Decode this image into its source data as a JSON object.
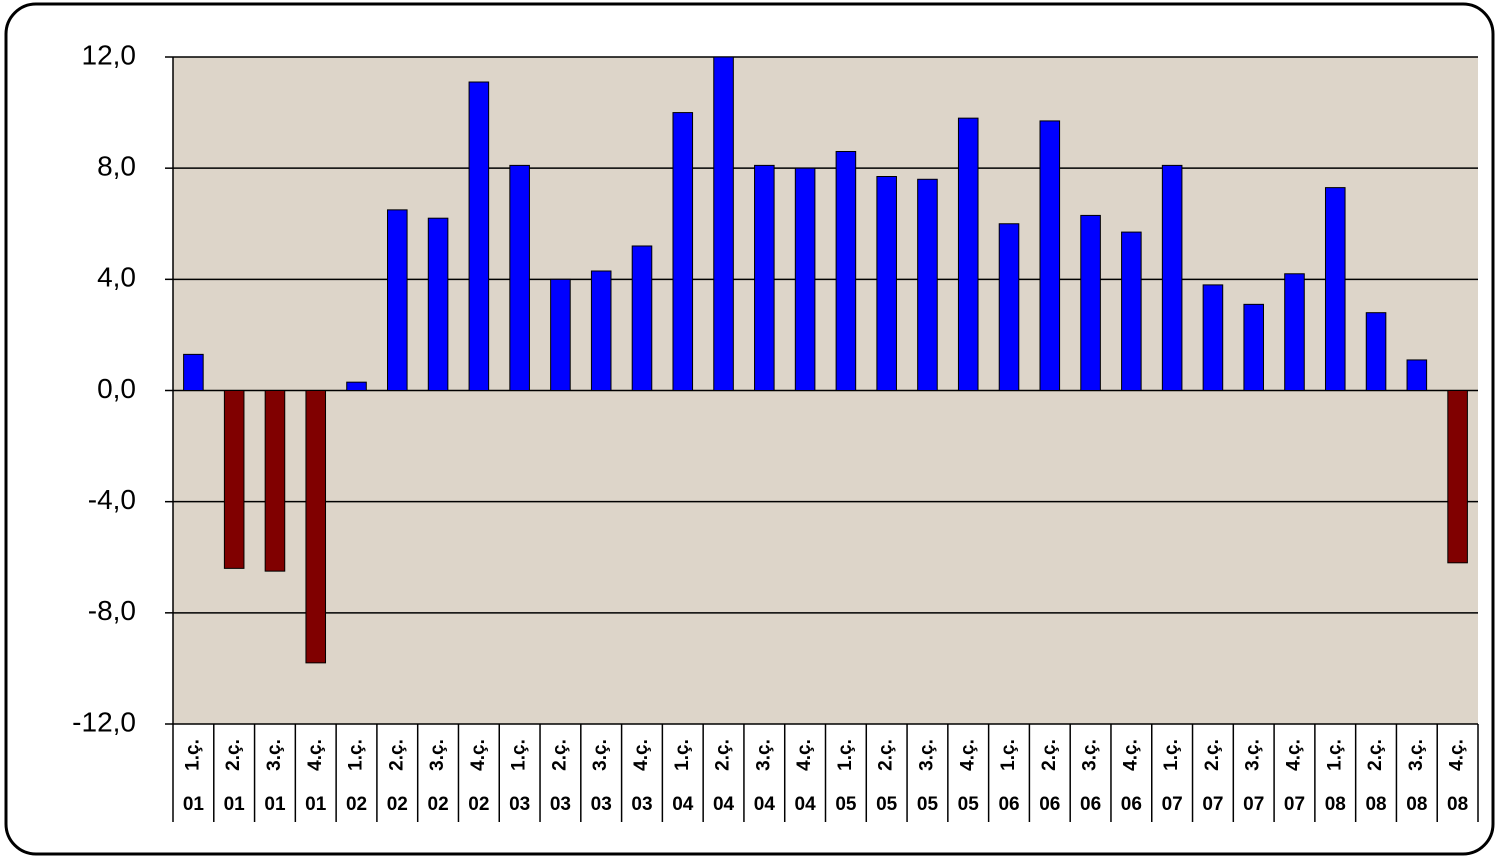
{
  "chart_data": {
    "type": "bar",
    "categories": [
      [
        "1.ç.",
        "01"
      ],
      [
        "2.ç.",
        "01"
      ],
      [
        "3.ç.",
        "01"
      ],
      [
        "4.ç.",
        "01"
      ],
      [
        "1.ç.",
        "02"
      ],
      [
        "2.ç.",
        "02"
      ],
      [
        "3.ç.",
        "02"
      ],
      [
        "4.ç.",
        "02"
      ],
      [
        "1.ç.",
        "03"
      ],
      [
        "2.ç.",
        "03"
      ],
      [
        "3.ç.",
        "03"
      ],
      [
        "4.ç.",
        "03"
      ],
      [
        "1.ç.",
        "04"
      ],
      [
        "2.ç.",
        "04"
      ],
      [
        "3.ç.",
        "04"
      ],
      [
        "4.ç.",
        "04"
      ],
      [
        "1.ç.",
        "05"
      ],
      [
        "2.ç.",
        "05"
      ],
      [
        "3.ç.",
        "05"
      ],
      [
        "4.ç.",
        "05"
      ],
      [
        "1.ç.",
        "06"
      ],
      [
        "2.ç.",
        "06"
      ],
      [
        "3.ç.",
        "06"
      ],
      [
        "4.ç.",
        "06"
      ],
      [
        "1.ç.",
        "07"
      ],
      [
        "2.ç.",
        "07"
      ],
      [
        "3.ç.",
        "07"
      ],
      [
        "4.ç.",
        "07"
      ],
      [
        "1.ç.",
        "08"
      ],
      [
        "2.ç.",
        "08"
      ],
      [
        "3.ç.",
        "08"
      ],
      [
        "4.ç.",
        "08"
      ]
    ],
    "values": [
      1.3,
      -6.4,
      -6.5,
      -9.8,
      0.3,
      6.5,
      6.2,
      11.1,
      8.1,
      4.0,
      4.3,
      5.2,
      10.0,
      12.0,
      8.1,
      8.0,
      8.6,
      7.7,
      7.6,
      9.8,
      6.0,
      9.7,
      6.3,
      5.7,
      8.1,
      3.8,
      3.1,
      4.2,
      7.3,
      2.8,
      1.1,
      -6.2
    ],
    "color": "#0000ff",
    "negative_color": "#800000",
    "ylim": [
      -12,
      12
    ],
    "yticks": [
      {
        "value": -12,
        "label": "-12,0"
      },
      {
        "value": -8,
        "label": "-8,0"
      },
      {
        "value": -4,
        "label": "-4,0"
      },
      {
        "value": 0,
        "label": "0,0"
      },
      {
        "value": 4,
        "label": "4,0"
      },
      {
        "value": 8,
        "label": "8,0"
      },
      {
        "value": 12,
        "label": "12,0"
      }
    ],
    "grid": true
  }
}
